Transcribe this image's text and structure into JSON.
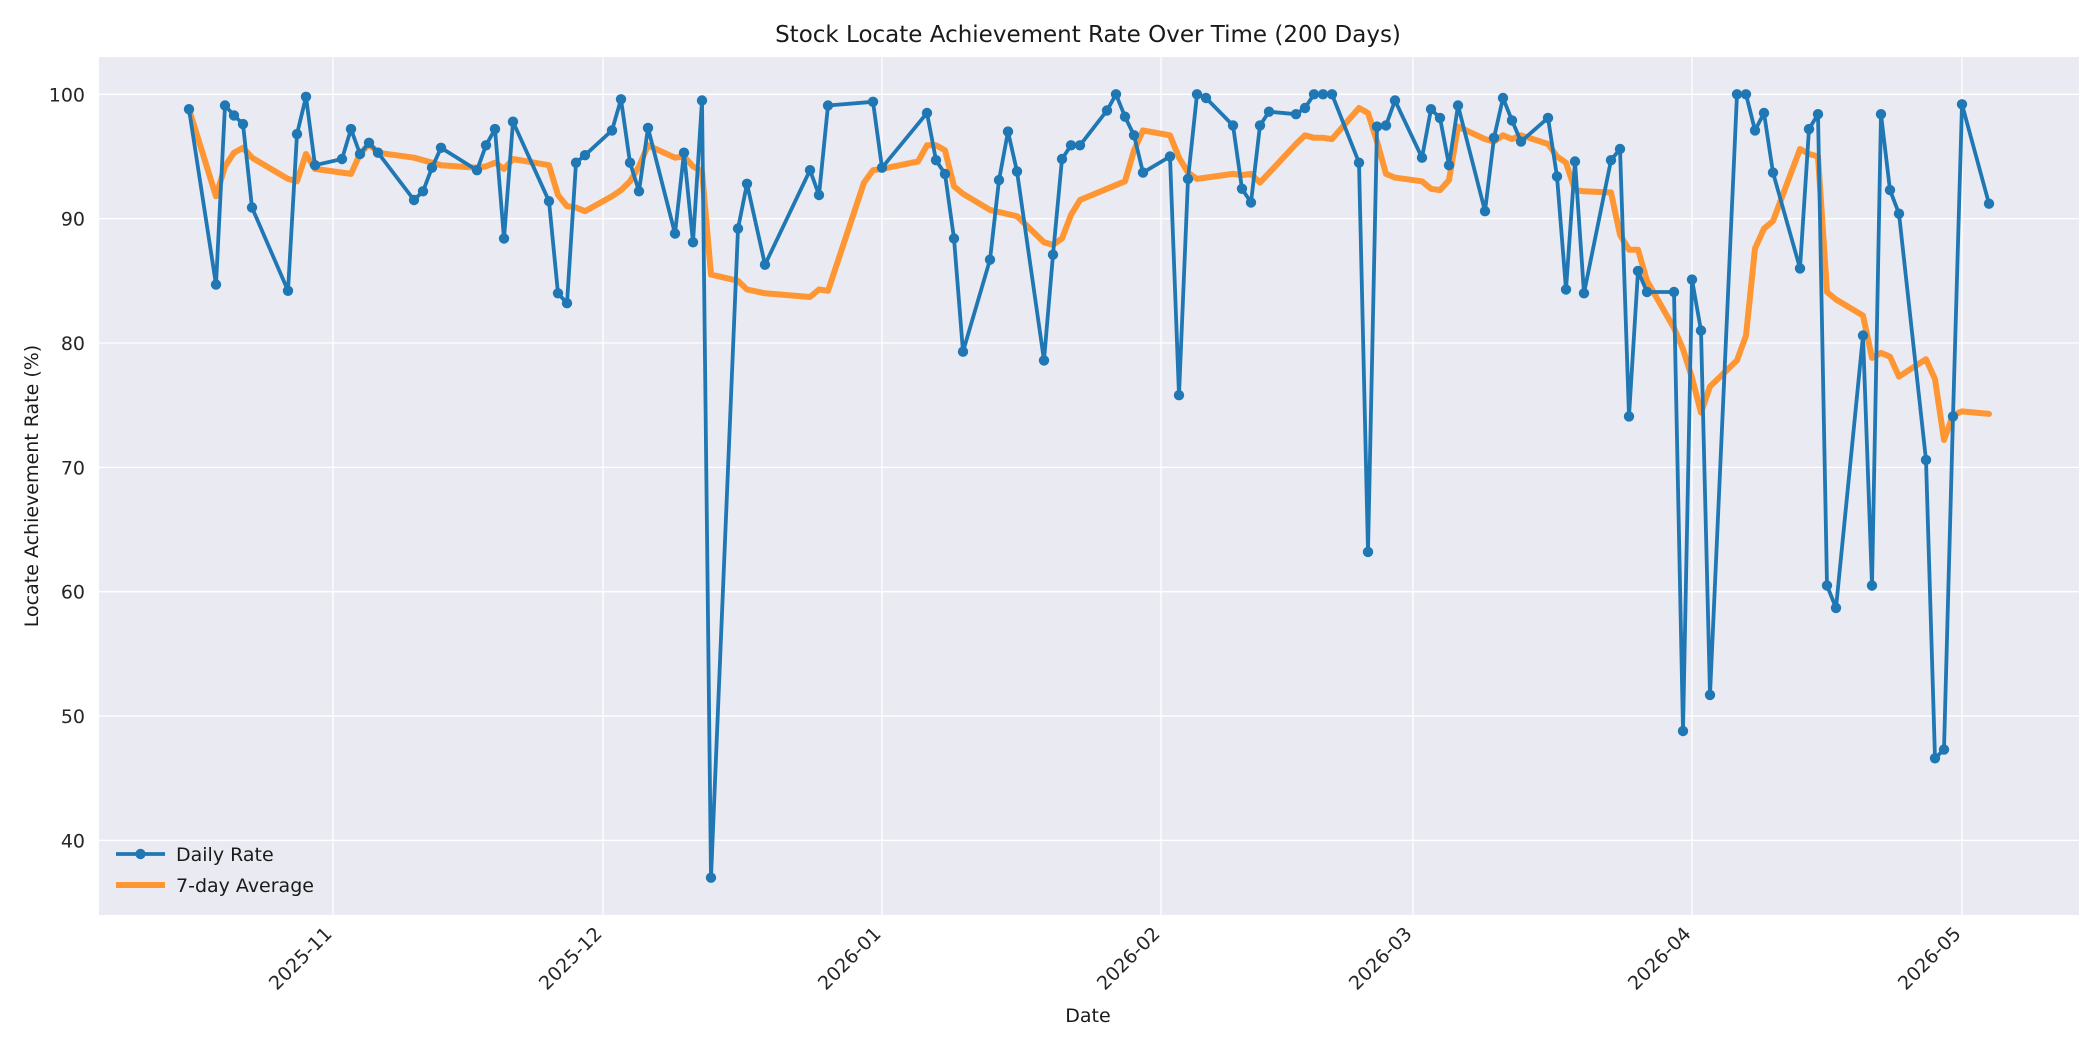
{
  "chart_data": {
    "type": "line",
    "title": "Stock Locate Achievement Rate Over Time (200 Days)",
    "xlabel": "Date",
    "ylabel": "Locate Achievement Rate (%)",
    "xlim": [
      "2025-10-06",
      "2026-05-14"
    ],
    "ylim": [
      34,
      103
    ],
    "yticks": [
      40,
      50,
      60,
      70,
      80,
      90,
      100
    ],
    "xticks": [
      "2025-11-01",
      "2025-12-01",
      "2026-01-01",
      "2026-02-01",
      "2026-03-01",
      "2026-04-01",
      "2026-05-01"
    ],
    "xtick_labels": [
      "2025-11",
      "2025-12",
      "2026-01",
      "2026-02",
      "2026-03",
      "2026-04",
      "2026-05"
    ],
    "grid": true,
    "legend": "lower-left",
    "colors": {
      "daily": "#1f77b4",
      "avg": "#ff9634",
      "plot_bg": "#eaeaf2",
      "grid": "#ffffff"
    },
    "series": [
      {
        "name": "Daily Rate",
        "marker": "circle",
        "x": [
          "2025-10-16",
          "2025-10-19",
          "2025-10-20",
          "2025-10-21",
          "2025-10-22",
          "2025-10-23",
          "2025-10-27",
          "2025-10-28",
          "2025-10-29",
          "2025-10-30",
          "2025-11-02",
          "2025-11-03",
          "2025-11-04",
          "2025-11-05",
          "2025-11-06",
          "2025-11-10",
          "2025-11-11",
          "2025-11-12",
          "2025-11-13",
          "2025-11-17",
          "2025-11-18",
          "2025-11-19",
          "2025-11-20",
          "2025-11-21",
          "2025-11-25",
          "2025-11-26",
          "2025-11-27",
          "2025-11-28",
          "2025-11-29",
          "2025-12-02",
          "2025-12-03",
          "2025-12-04",
          "2025-12-05",
          "2025-12-06",
          "2025-12-09",
          "2025-12-10",
          "2025-12-11",
          "2025-12-12",
          "2025-12-13",
          "2025-12-16",
          "2025-12-17",
          "2025-12-19",
          "2025-12-24",
          "2025-12-25",
          "2025-12-26",
          "2025-12-31",
          "2026-01-01",
          "2026-01-06",
          "2026-01-07",
          "2026-01-08",
          "2026-01-09",
          "2026-01-10",
          "2026-01-13",
          "2026-01-14",
          "2026-01-15",
          "2026-01-16",
          "2026-01-19",
          "2026-01-20",
          "2026-01-21",
          "2026-01-22",
          "2026-01-23",
          "2026-01-26",
          "2026-01-27",
          "2026-01-28",
          "2026-01-29",
          "2026-01-30",
          "2026-02-02",
          "2026-02-03",
          "2026-02-04",
          "2026-02-05",
          "2026-02-06",
          "2026-02-09",
          "2026-02-10",
          "2026-02-11",
          "2026-02-12",
          "2026-02-13",
          "2026-02-16",
          "2026-02-17",
          "2026-02-18",
          "2026-02-19",
          "2026-02-20",
          "2026-02-23",
          "2026-02-24",
          "2026-02-25",
          "2026-02-26",
          "2026-02-27",
          "2026-03-02",
          "2026-03-03",
          "2026-03-04",
          "2026-03-05",
          "2026-03-06",
          "2026-03-09",
          "2026-03-10",
          "2026-03-11",
          "2026-03-12",
          "2026-03-13",
          "2026-03-16",
          "2026-03-17",
          "2026-03-18",
          "2026-03-19",
          "2026-03-20",
          "2026-03-23",
          "2026-03-24",
          "2026-03-25",
          "2026-03-26",
          "2026-03-27",
          "2026-03-30",
          "2026-03-31",
          "2026-04-01",
          "2026-04-02",
          "2026-04-03",
          "2026-04-06",
          "2026-04-07",
          "2026-04-08",
          "2026-04-09",
          "2026-04-10",
          "2026-04-13",
          "2026-04-14",
          "2026-04-15",
          "2026-04-16",
          "2026-04-17",
          "2026-04-20",
          "2026-04-21",
          "2026-04-22",
          "2026-04-23",
          "2026-04-24",
          "2026-04-27",
          "2026-04-28",
          "2026-04-29",
          "2026-04-30",
          "2026-05-01",
          "2026-05-04"
        ],
        "values": [
          98.8,
          84.7,
          99.1,
          98.3,
          97.6,
          90.9,
          84.2,
          96.8,
          99.8,
          94.3,
          94.8,
          97.2,
          95.2,
          96.1,
          95.3,
          91.5,
          92.2,
          94.1,
          95.7,
          93.9,
          95.9,
          97.2,
          88.4,
          97.8,
          91.4,
          84.0,
          83.2,
          94.5,
          95.1,
          97.1,
          99.6,
          94.5,
          92.2,
          97.3,
          88.8,
          95.3,
          88.1,
          99.5,
          37.0,
          89.2,
          92.8,
          86.3,
          93.9,
          91.9,
          99.1,
          99.4,
          94.1,
          98.5,
          94.7,
          93.6,
          88.4,
          79.3,
          86.7,
          93.1,
          97.0,
          93.8,
          78.6,
          87.1,
          94.8,
          95.9,
          95.9,
          98.7,
          100.0,
          98.2,
          96.7,
          93.7,
          95.0,
          75.8,
          93.2,
          100.0,
          99.7,
          97.5,
          92.4,
          91.3,
          97.5,
          98.6,
          98.4,
          98.9,
          100.0,
          100.0,
          100.0,
          94.5,
          63.2,
          97.4,
          97.5,
          99.5,
          94.9,
          98.8,
          98.1,
          94.3,
          99.1,
          90.6,
          96.5,
          99.7,
          97.9,
          96.2,
          98.1,
          93.4,
          84.3,
          94.6,
          84.0,
          94.7,
          95.6,
          74.1,
          85.8,
          84.1,
          84.1,
          48.8,
          85.1,
          81.0,
          51.7,
          100.0,
          100.0,
          97.1,
          98.5,
          93.7,
          86.0,
          97.2,
          98.4,
          60.5,
          58.7,
          80.6,
          60.5,
          98.4,
          92.3,
          90.4,
          70.6,
          46.6,
          47.3,
          74.1,
          99.2,
          91.2
        ]
      },
      {
        "name": "7-day Average",
        "x": [
          "2025-10-16",
          "2025-10-19",
          "2025-10-20",
          "2025-10-21",
          "2025-10-22",
          "2025-10-23",
          "2025-10-27",
          "2025-10-28",
          "2025-10-29",
          "2025-10-30",
          "2025-11-03",
          "2025-11-04",
          "2025-11-05",
          "2025-11-06",
          "2025-11-10",
          "2025-11-13",
          "2025-11-17",
          "2025-11-18",
          "2025-11-19",
          "2025-11-20",
          "2025-11-21",
          "2025-11-25",
          "2025-11-26",
          "2025-11-27",
          "2025-11-28",
          "2025-11-29",
          "2025-12-02",
          "2025-12-03",
          "2025-12-04",
          "2025-12-05",
          "2025-12-06",
          "2025-12-09",
          "2025-12-10",
          "2025-12-11",
          "2025-12-12",
          "2025-12-13",
          "2025-12-16",
          "2025-12-17",
          "2025-12-19",
          "2025-12-24",
          "2025-12-25",
          "2025-12-26",
          "2025-12-30",
          "2025-12-31",
          "2026-01-01",
          "2026-01-05",
          "2026-01-06",
          "2026-01-07",
          "2026-01-08",
          "2026-01-09",
          "2026-01-10",
          "2026-01-13",
          "2026-01-16",
          "2026-01-19",
          "2026-01-20",
          "2026-01-21",
          "2026-01-22",
          "2026-01-23",
          "2026-01-28",
          "2026-01-29",
          "2026-01-30",
          "2026-02-02",
          "2026-02-03",
          "2026-02-04",
          "2026-02-05",
          "2026-02-06",
          "2026-02-09",
          "2026-02-10",
          "2026-02-11",
          "2026-02-12",
          "2026-02-16",
          "2026-02-17",
          "2026-02-18",
          "2026-02-19",
          "2026-02-20",
          "2026-02-23",
          "2026-02-24",
          "2026-02-25",
          "2026-02-26",
          "2026-02-27",
          "2026-03-02",
          "2026-03-03",
          "2026-03-04",
          "2026-03-05",
          "2026-03-06",
          "2026-03-09",
          "2026-03-10",
          "2026-03-11",
          "2026-03-12",
          "2026-03-13",
          "2026-03-16",
          "2026-03-17",
          "2026-03-18",
          "2026-03-19",
          "2026-03-20",
          "2026-03-23",
          "2026-03-24",
          "2026-03-25",
          "2026-03-26",
          "2026-03-27",
          "2026-03-30",
          "2026-03-31",
          "2026-04-01",
          "2026-04-02",
          "2026-04-03",
          "2026-04-06",
          "2026-04-07",
          "2026-04-08",
          "2026-04-09",
          "2026-04-10",
          "2026-04-13",
          "2026-04-14",
          "2026-04-15",
          "2026-04-16",
          "2026-04-17",
          "2026-04-20",
          "2026-04-21",
          "2026-04-22",
          "2026-04-23",
          "2026-04-24",
          "2026-04-27",
          "2026-04-28",
          "2026-04-29",
          "2026-04-30",
          "2026-05-01",
          "2026-05-04"
        ],
        "values": [
          98.8,
          91.8,
          94.2,
          95.3,
          95.7,
          94.9,
          93.2,
          93.0,
          95.2,
          94.0,
          93.6,
          95.2,
          96.0,
          95.3,
          94.9,
          94.3,
          94.1,
          94.2,
          94.5,
          94.0,
          94.8,
          94.3,
          91.9,
          91.0,
          90.9,
          90.6,
          91.8,
          92.3,
          93.0,
          94.2,
          95.9,
          94.9,
          95.0,
          94.2,
          93.8,
          85.5,
          85.0,
          84.3,
          84.0,
          83.7,
          84.3,
          84.2,
          92.9,
          93.9,
          94.0,
          94.6,
          95.9,
          95.9,
          95.5,
          92.6,
          92.0,
          90.7,
          90.2,
          88.1,
          87.9,
          88.4,
          90.3,
          91.5,
          93.0,
          95.5,
          97.1,
          96.7,
          94.9,
          93.7,
          93.2,
          93.3,
          93.6,
          93.5,
          93.6,
          92.9,
          96.0,
          96.7,
          96.5,
          96.5,
          96.4,
          98.9,
          98.5,
          96.2,
          93.6,
          93.3,
          93.0,
          92.4,
          92.3,
          93.1,
          97.4,
          96.4,
          96.2,
          96.7,
          96.4,
          96.7,
          96.0,
          95.0,
          94.5,
          92.3,
          92.2,
          92.1,
          88.7,
          87.5,
          87.5,
          85.0,
          81.2,
          79.5,
          77.2,
          74.4,
          76.5,
          78.6,
          80.6,
          87.6,
          89.2,
          89.8,
          95.6,
          95.2,
          95.0,
          84.1,
          83.5,
          82.2,
          78.8,
          79.2,
          78.9,
          77.3,
          78.7,
          77.1,
          72.2,
          74.2,
          74.5,
          74.3
        ]
      }
    ]
  }
}
